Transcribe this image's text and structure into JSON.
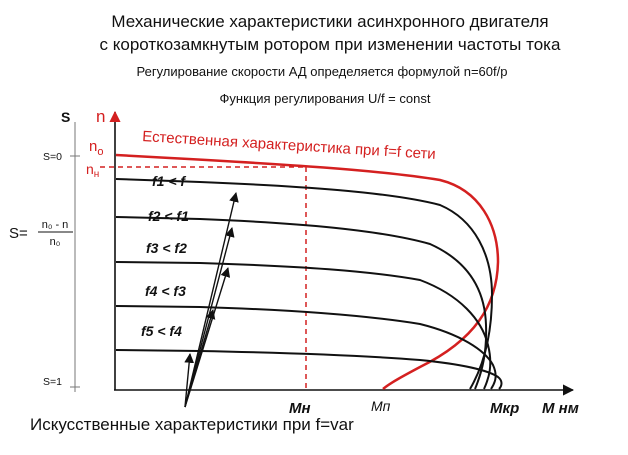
{
  "title": {
    "line1": "Механические характеристики асинхронного двигателя",
    "line2": "с короткозамкнутым ротором при изменении частоты тока"
  },
  "subtitle": {
    "line1": "Регулирование скорости АД определяется формулой n=60f/p",
    "line2": "Функция регулирования U/f = const"
  },
  "axes": {
    "s_label": "S",
    "n_label": "n",
    "s0_label": "S=0",
    "s1_label": "S=1",
    "n0_label": "n",
    "n0_sub": "o",
    "nn_label": "n",
    "nn_sub": "н",
    "x_label": "М нм"
  },
  "slip_formula": {
    "lhs": "S=",
    "numerator": "n₀ - n",
    "denominator": "n₀"
  },
  "markers": {
    "mn": "Мн",
    "mp": "Мп",
    "mkr": "Мкр"
  },
  "natural_label": "Естественная характеристика при f=f сети",
  "artificial_label": "Искусственные характеристики при f=var",
  "curve_labels": [
    "f1 < f",
    "f2 < f1",
    "f3 < f2",
    "f4 < f3",
    "f5 < f4"
  ],
  "colors": {
    "natural": "#d42020",
    "artificial": "#111111",
    "dashed": "#d42020"
  }
}
